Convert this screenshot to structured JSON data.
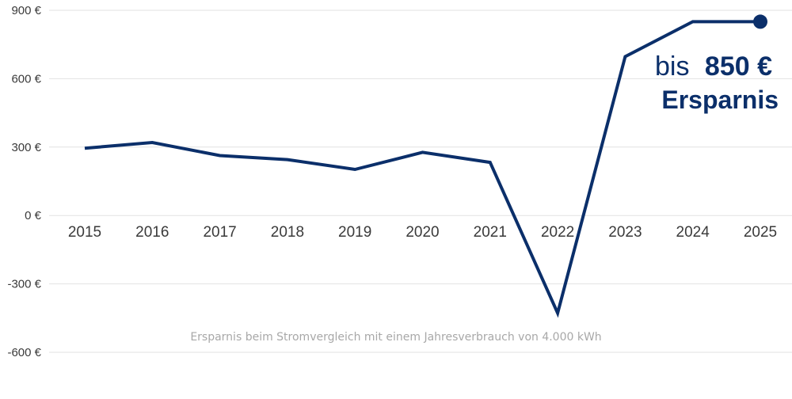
{
  "chart_data": {
    "type": "line",
    "title": "",
    "xlabel": "",
    "ylabel": "",
    "categories": [
      "2015",
      "2016",
      "2017",
      "2018",
      "2019",
      "2020",
      "2021",
      "2022",
      "2023",
      "2024",
      "2025"
    ],
    "series": [
      {
        "values": [
          295,
          320,
          263,
          245,
          202,
          277,
          233,
          -428,
          697,
          850,
          850
        ],
        "color": "#0b2f6a"
      }
    ],
    "ylim": [
      -600,
      900
    ],
    "yticks": [
      900,
      600,
      300,
      0,
      -300,
      -600
    ],
    "ytick_labels": [
      "900 €",
      "600 €",
      "300 €",
      "0 €",
      "-300 €",
      "-600 €"
    ],
    "grid": true,
    "end_marker": true,
    "annotation": {
      "prefix": "bis",
      "value": "850 €",
      "label": "Ersparnis"
    },
    "caption": "Ersparnis beim Stromvergleich mit einem Jahresverbrauch von 4.000 kWh"
  }
}
